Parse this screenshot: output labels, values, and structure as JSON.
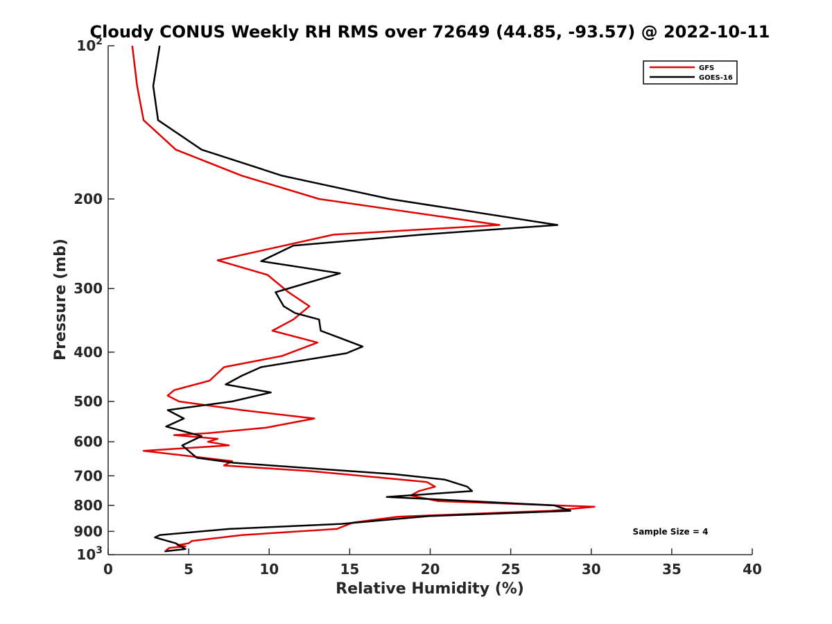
{
  "chart_data": {
    "type": "line",
    "title": "Cloudy CONUS Weekly RH RMS over 72649 (44.85, -93.57) @ 2022-10-11",
    "xlabel": "Relative Humidity (%)",
    "ylabel": "Pressure (mb)",
    "xlim": [
      0,
      40
    ],
    "ylim": [
      100,
      1000
    ],
    "yscale": "log",
    "y_reversed": true,
    "grid": false,
    "legend_position": "top-right",
    "x_ticks": [
      "0",
      "5",
      "10",
      "15",
      "20",
      "25",
      "30",
      "35",
      "40"
    ],
    "y_ticks": [
      {
        "value": 100,
        "label": "10",
        "sup": "2"
      },
      {
        "value": 200,
        "label": "200"
      },
      {
        "value": 300,
        "label": "300"
      },
      {
        "value": 400,
        "label": "400"
      },
      {
        "value": 500,
        "label": "500"
      },
      {
        "value": 600,
        "label": "600"
      },
      {
        "value": 700,
        "label": "700"
      },
      {
        "value": 800,
        "label": "800"
      },
      {
        "value": 900,
        "label": "900"
      },
      {
        "value": 1000,
        "label": "10",
        "sup": "3"
      }
    ],
    "annotation": "Sample Size = 4",
    "series": [
      {
        "name": "GFS",
        "color": "#e00000",
        "points": [
          [
            1.5,
            100
          ],
          [
            1.8,
            120
          ],
          [
            2.2,
            140
          ],
          [
            4.2,
            160
          ],
          [
            8.3,
            180
          ],
          [
            13.1,
            200
          ],
          [
            24.3,
            225
          ],
          [
            14.0,
            235
          ],
          [
            6.8,
            264
          ],
          [
            9.9,
            282
          ],
          [
            11.2,
            305
          ],
          [
            12.5,
            325
          ],
          [
            11.5,
            345
          ],
          [
            10.2,
            363
          ],
          [
            13.0,
            383
          ],
          [
            10.8,
            407
          ],
          [
            7.2,
            428
          ],
          [
            6.3,
            455
          ],
          [
            4.1,
            475
          ],
          [
            3.7,
            487
          ],
          [
            4.4,
            500
          ],
          [
            8.3,
            520
          ],
          [
            12.8,
            540
          ],
          [
            9.8,
            563
          ],
          [
            6.2,
            577
          ],
          [
            4.1,
            582
          ],
          [
            6.8,
            592
          ],
          [
            6.2,
            600
          ],
          [
            7.5,
            610
          ],
          [
            2.2,
            625
          ],
          [
            7.7,
            655
          ],
          [
            7.2,
            668
          ],
          [
            12.5,
            685
          ],
          [
            16.8,
            705
          ],
          [
            19.8,
            720
          ],
          [
            20.3,
            735
          ],
          [
            19.3,
            750
          ],
          [
            18.8,
            765
          ],
          [
            20.5,
            785
          ],
          [
            30.2,
            805
          ],
          [
            27.5,
            820
          ],
          [
            18.0,
            842
          ],
          [
            15.2,
            865
          ],
          [
            14.2,
            890
          ],
          [
            8.3,
            915
          ],
          [
            5.2,
            940
          ],
          [
            5.0,
            950
          ],
          [
            4.3,
            958
          ],
          [
            4.8,
            963
          ],
          [
            3.8,
            970
          ],
          [
            3.6,
            980
          ]
        ]
      },
      {
        "name": "GOES-16",
        "color": "#000000",
        "points": [
          [
            3.2,
            100
          ],
          [
            2.8,
            120
          ],
          [
            3.1,
            140
          ],
          [
            5.8,
            160
          ],
          [
            10.8,
            180
          ],
          [
            17.5,
            200
          ],
          [
            27.9,
            225
          ],
          [
            19.5,
            235
          ],
          [
            11.5,
            247
          ],
          [
            9.5,
            265
          ],
          [
            14.4,
            280
          ],
          [
            10.4,
            305
          ],
          [
            10.9,
            325
          ],
          [
            11.6,
            335
          ],
          [
            13.1,
            345
          ],
          [
            13.2,
            363
          ],
          [
            15.8,
            390
          ],
          [
            14.8,
            402
          ],
          [
            9.5,
            428
          ],
          [
            8.3,
            445
          ],
          [
            7.3,
            463
          ],
          [
            10.1,
            480
          ],
          [
            7.7,
            500
          ],
          [
            3.7,
            520
          ],
          [
            4.7,
            540
          ],
          [
            3.6,
            560
          ],
          [
            5.8,
            585
          ],
          [
            4.6,
            610
          ],
          [
            5.5,
            645
          ],
          [
            7.8,
            660
          ],
          [
            17.8,
            695
          ],
          [
            20.9,
            712
          ],
          [
            22.3,
            735
          ],
          [
            22.6,
            750
          ],
          [
            17.3,
            770
          ],
          [
            27.7,
            800
          ],
          [
            28.7,
            820
          ],
          [
            19.9,
            840
          ],
          [
            14.5,
            870
          ],
          [
            7.5,
            890
          ],
          [
            3.2,
            915
          ],
          [
            2.9,
            925
          ],
          [
            4.2,
            950
          ],
          [
            4.8,
            975
          ],
          [
            3.5,
            985
          ]
        ]
      }
    ]
  }
}
